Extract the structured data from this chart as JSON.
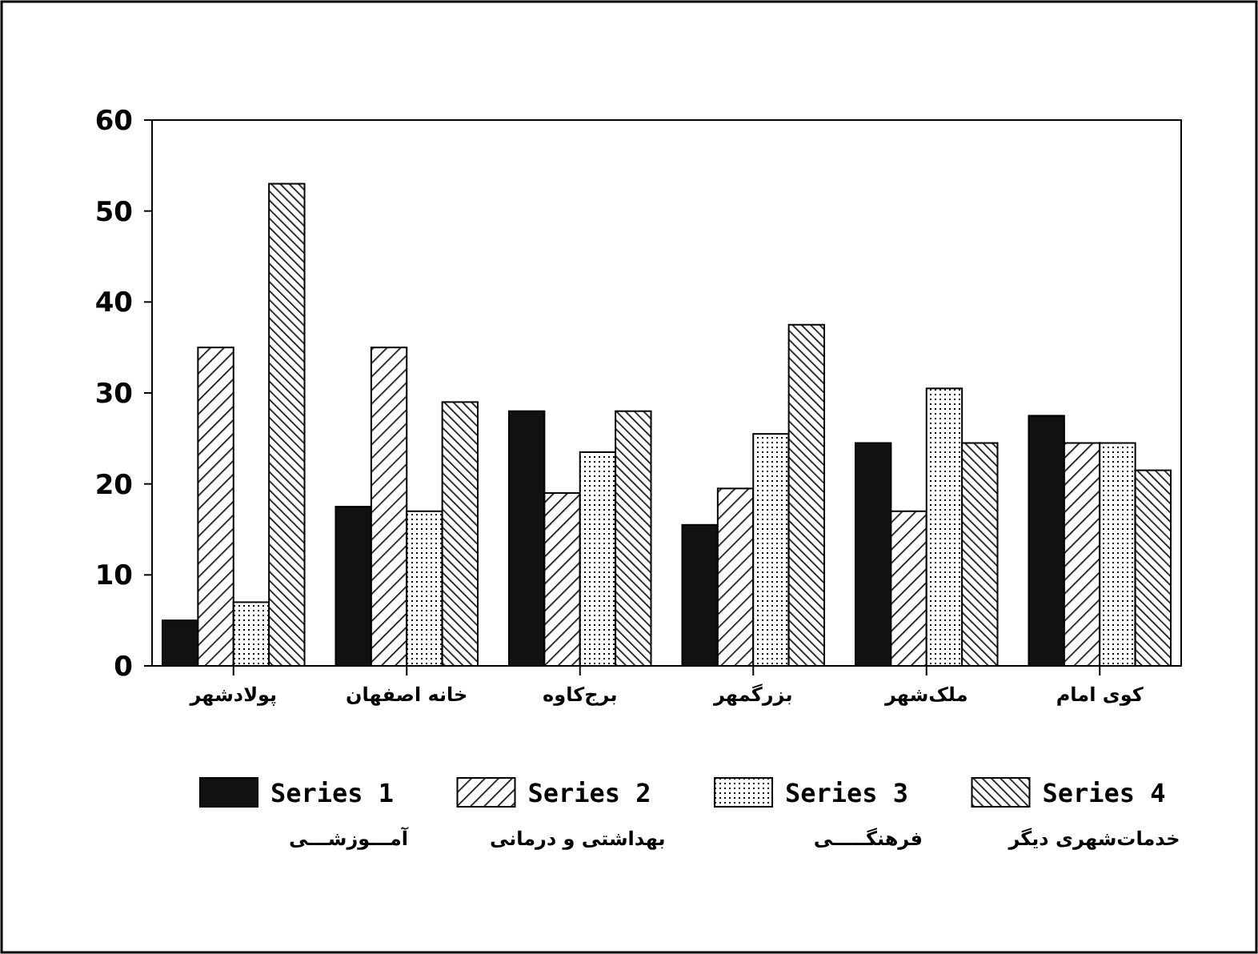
{
  "chart_data": {
    "type": "bar",
    "categories": [
      "پولادشهر",
      "خانه اصفهان",
      "برج‌کاوه",
      "بزرگمهر",
      "ملک‌شهر",
      "کوی امام"
    ],
    "series": [
      {
        "name": "Series 1",
        "color": "#111111",
        "values": [
          5,
          17.5,
          28,
          15.5,
          24.5,
          27.5
        ]
      },
      {
        "name": "Series 2",
        "color": "#000000",
        "values": [
          35,
          35,
          19,
          19.5,
          17,
          24.5
        ]
      },
      {
        "name": "Series 3",
        "color": "#000000",
        "values": [
          7,
          17,
          23.5,
          25.5,
          30.5,
          24.5
        ]
      },
      {
        "name": "Series 4",
        "color": "#000000",
        "values": [
          53,
          29,
          28,
          37.5,
          24.5,
          21.5
        ]
      }
    ],
    "annotations": [
      "آمـــوزشـــی",
      "بهداشتی و درمانی",
      "فرهنگـــــی",
      "خدمات‌شهری دیگر"
    ],
    "ylim": [
      0,
      60
    ],
    "yticks": [
      0,
      10,
      20,
      30,
      40,
      50,
      60
    ],
    "grid": false,
    "legend": "bottom"
  }
}
